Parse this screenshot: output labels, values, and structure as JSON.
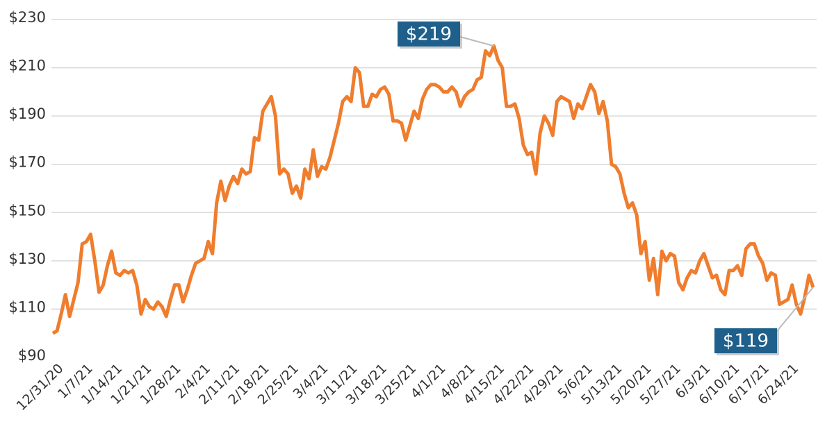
{
  "chart_data": {
    "type": "line",
    "categories": [
      "12/31/20",
      null,
      null,
      null,
      null,
      null,
      null,
      "1/7/21",
      null,
      null,
      null,
      null,
      null,
      null,
      "1/14/21",
      null,
      null,
      null,
      null,
      null,
      null,
      "1/21/21",
      null,
      null,
      null,
      null,
      null,
      null,
      "1/28/21",
      null,
      null,
      null,
      null,
      null,
      null,
      "2/4/21",
      null,
      null,
      null,
      null,
      null,
      null,
      "2/11/21",
      null,
      null,
      null,
      null,
      null,
      null,
      "2/18/21",
      null,
      null,
      null,
      null,
      null,
      null,
      "2/25/21",
      null,
      null,
      null,
      null,
      null,
      null,
      "3/4/21",
      null,
      null,
      null,
      null,
      null,
      null,
      "3/11/21",
      null,
      null,
      null,
      null,
      null,
      null,
      "3/18/21",
      null,
      null,
      null,
      null,
      null,
      null,
      "3/25/21",
      null,
      null,
      null,
      null,
      null,
      null,
      "4/1/21",
      null,
      null,
      null,
      null,
      null,
      null,
      "4/8/21",
      null,
      null,
      null,
      null,
      null,
      null,
      "4/15/21",
      null,
      null,
      null,
      null,
      null,
      null,
      "4/22/21",
      null,
      null,
      null,
      null,
      null,
      null,
      "4/29/21",
      null,
      null,
      null,
      null,
      null,
      null,
      "5/6/21",
      null,
      null,
      null,
      null,
      null,
      null,
      "5/13/21",
      null,
      null,
      null,
      null,
      null,
      null,
      "5/20/21",
      null,
      null,
      null,
      null,
      null,
      null,
      "5/27/21",
      null,
      null,
      null,
      null,
      null,
      null,
      "6/3/21",
      null,
      null,
      null,
      null,
      null,
      null,
      "6/10/21",
      null,
      null,
      null,
      null,
      null,
      null,
      "6/17/21",
      null,
      null,
      null,
      null,
      null,
      null,
      "6/24/21",
      null,
      null,
      null,
      null,
      null,
      null
    ],
    "series": [
      {
        "color": "#ef7d2d",
        "values": [
          100,
          101,
          108,
          116,
          107,
          114,
          121,
          137,
          138,
          141,
          130,
          117,
          120,
          128,
          134,
          125,
          124,
          126,
          125,
          126,
          120,
          108,
          114,
          111,
          110,
          113,
          111,
          107,
          114,
          120,
          120,
          113,
          118,
          124,
          129,
          130,
          131,
          138,
          133,
          154,
          163,
          155,
          161,
          165,
          162,
          168,
          166,
          167,
          181,
          180,
          192,
          195,
          198,
          190,
          166,
          168,
          166,
          158,
          161,
          156,
          168,
          164,
          176,
          165,
          169,
          168,
          173,
          180,
          187,
          196,
          198,
          196,
          210,
          208,
          194,
          194,
          199,
          198,
          201,
          202,
          199,
          188,
          188,
          187,
          180,
          186,
          192,
          189,
          197,
          201,
          203,
          203,
          202,
          200,
          200,
          202,
          200,
          194,
          198,
          200,
          201,
          205,
          206,
          217,
          215,
          219,
          213,
          210,
          194,
          194,
          195,
          189,
          178,
          174,
          175,
          166,
          183,
          190,
          187,
          182,
          196,
          198,
          197,
          196,
          189,
          195,
          193,
          198,
          203,
          200,
          191,
          196,
          188,
          170,
          169,
          166,
          158,
          152,
          154,
          149,
          133,
          138,
          122,
          131,
          116,
          134,
          130,
          133,
          132,
          121,
          118,
          123,
          126,
          125,
          130,
          133,
          128,
          123,
          124,
          118,
          116,
          126,
          126,
          128,
          124,
          135,
          137,
          137,
          132,
          129,
          122,
          125,
          124,
          112,
          113,
          114,
          120,
          112,
          108,
          115,
          124,
          119
        ]
      }
    ],
    "ylim": [
      90,
      230
    ],
    "yticks": [
      {
        "value": 90,
        "label": "$90"
      },
      {
        "value": 110,
        "label": "$110"
      },
      {
        "value": 130,
        "label": "$130"
      },
      {
        "value": 150,
        "label": "$150"
      },
      {
        "value": 170,
        "label": "$170"
      },
      {
        "value": 190,
        "label": "$190"
      },
      {
        "value": 210,
        "label": "$210"
      },
      {
        "value": 230,
        "label": "$230"
      }
    ],
    "grid": true,
    "annotations": [
      {
        "label": "$219",
        "value": 219
      },
      {
        "label": "$119",
        "value": 119
      }
    ]
  }
}
